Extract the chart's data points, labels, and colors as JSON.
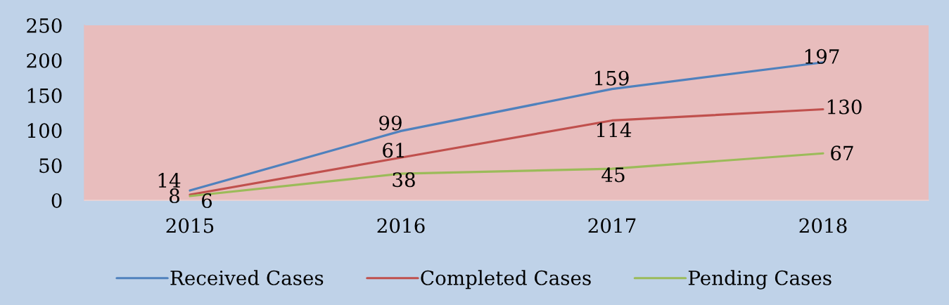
{
  "chart_data": {
    "type": "line",
    "categories": [
      "2015",
      "2016",
      "2017",
      "2018"
    ],
    "series": [
      {
        "name": "Received Cases",
        "color": "#4f81bd",
        "values": [
          14,
          99,
          159,
          197
        ]
      },
      {
        "name": "Completed Cases",
        "color": "#c0504d",
        "values": [
          8,
          61,
          114,
          130
        ]
      },
      {
        "name": "Pending Cases",
        "color": "#9bbb59",
        "values": [
          6,
          38,
          45,
          67
        ]
      }
    ],
    "ylim": [
      0,
      250
    ],
    "yticks": [
      0,
      50,
      100,
      150,
      200,
      250
    ],
    "data_labels": true,
    "legend": "bottom",
    "grid": false,
    "marker": "none",
    "line_style": "solid"
  }
}
